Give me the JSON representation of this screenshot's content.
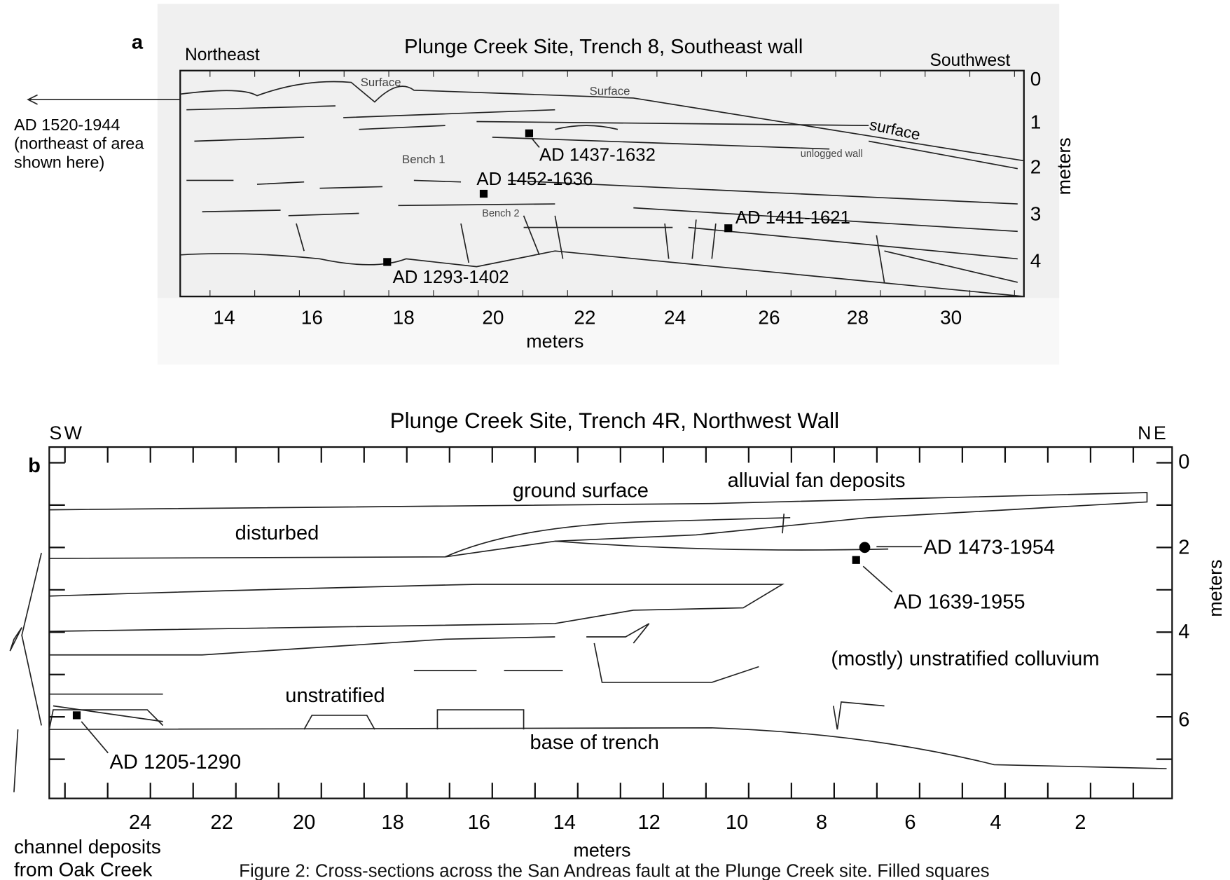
{
  "panel_a": {
    "label": "a",
    "title": "Plunge Creek Site, Trench 8, Southeast wall",
    "left_label": "Northeast",
    "right_label": "Southwest",
    "x_ticks": [
      14,
      16,
      18,
      20,
      22,
      24,
      26,
      28,
      30
    ],
    "x_axis_title": "meters",
    "y_ticks": [
      0,
      1,
      2,
      3,
      4
    ],
    "y_axis_title": "meters",
    "annotations": [
      "Surface",
      "Surface",
      "surface",
      "Bench 1",
      "Bench 2",
      "unlogged wall"
    ],
    "dates": [
      "AD 1437-1632",
      "AD 1452-1636",
      "AD 1411-1621",
      "AD 1293-1402"
    ],
    "outside_note": [
      "AD 1520-1944",
      "(northeast of area",
      "shown here)"
    ]
  },
  "panel_b": {
    "label": "b",
    "title": "Plunge Creek Site, Trench 4R,  Northwest Wall",
    "left_label": "SW",
    "right_label": "NE",
    "x_ticks": [
      24,
      22,
      20,
      18,
      16,
      14,
      12,
      10,
      8,
      6,
      4,
      2
    ],
    "x_axis_title": "meters",
    "y_ticks": [
      0,
      2,
      4,
      6
    ],
    "y_axis_title": "meters",
    "annotations": [
      "ground surface",
      "alluvial fan deposits",
      "disturbed",
      "unstratified",
      "(mostly) unstratified colluvium",
      "base of trench"
    ],
    "dates": [
      "AD 1473-1954",
      "AD 1639-1955",
      "AD 1205-1290"
    ],
    "outside_note": [
      "channel deposits",
      "from Oak Creek"
    ]
  },
  "caption": "Figure 2: Cross-sections across the San Andreas fault at the Plunge Creek site. Filled squares"
}
